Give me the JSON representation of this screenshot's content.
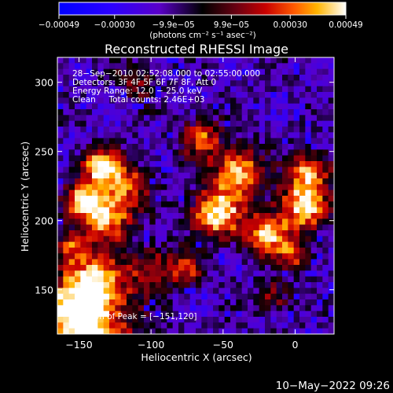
{
  "chart_data": {
    "type": "heatmap",
    "title": "Reconstructed RHESSI Image",
    "xlabel": "Heliocentric X (arcsec)",
    "ylabel": "Heliocentric Y (arcsec)",
    "xlim": [
      -165,
      27
    ],
    "ylim": [
      118,
      318
    ],
    "x_ticks": [
      {
        "value": -150,
        "label": "−150"
      },
      {
        "value": -100,
        "label": "−100"
      },
      {
        "value": -50,
        "label": "−50"
      },
      {
        "value": 0,
        "label": "0"
      }
    ],
    "y_ticks": [
      {
        "value": 150,
        "label": "150"
      },
      {
        "value": 200,
        "label": "200"
      },
      {
        "value": 250,
        "label": "250"
      },
      {
        "value": 300,
        "label": "300"
      }
    ],
    "colorbar": {
      "min": -0.00049,
      "max": 0.00049,
      "label": "(photons cm⁻² s⁻¹ asec⁻²)",
      "ticks": [
        {
          "value": -0.00049,
          "label": "−0.00049"
        },
        {
          "value": -0.0003,
          "label": "−0.00030"
        },
        {
          "value": -9.9e-05,
          "label": "−9.9e−05"
        },
        {
          "value": 9.9e-05,
          "label": "9.9e−05"
        },
        {
          "value": 0.0003,
          "label": "0.00030"
        },
        {
          "value": 0.00049,
          "label": "0.00049"
        }
      ]
    },
    "annotations": {
      "time": "28−Sep−2010 02:52:08.000 to 02:55:00.000",
      "detectors": "Detectors: 3F 4F 5F 6F 7F 8F, Att 0",
      "energy": "Energy Range: 12.0 − 25.0 keV",
      "clean": "Clean     Total counts: 2.46E+03",
      "peak": "Position of Peak = [−151,120]"
    },
    "peak_position": [
      -151,
      120
    ],
    "blobs": [
      {
        "x": -148,
        "y": 125,
        "w": 22,
        "intensity": 1.0
      },
      {
        "x": -140,
        "y": 155,
        "w": 14,
        "intensity": 0.7
      },
      {
        "x": -145,
        "y": 215,
        "w": 10,
        "intensity": 0.85
      },
      {
        "x": -135,
        "y": 240,
        "w": 9,
        "intensity": 0.85
      },
      {
        "x": -130,
        "y": 200,
        "w": 11,
        "intensity": 0.75
      },
      {
        "x": -118,
        "y": 225,
        "w": 11,
        "intensity": 0.65
      },
      {
        "x": -155,
        "y": 180,
        "w": 8,
        "intensity": 0.55
      },
      {
        "x": -100,
        "y": 165,
        "w": 12,
        "intensity": 0.45
      },
      {
        "x": -55,
        "y": 205,
        "w": 12,
        "intensity": 0.9
      },
      {
        "x": -40,
        "y": 235,
        "w": 12,
        "intensity": 0.8
      },
      {
        "x": -65,
        "y": 260,
        "w": 10,
        "intensity": 0.6
      },
      {
        "x": -20,
        "y": 190,
        "w": 11,
        "intensity": 0.8
      },
      {
        "x": 5,
        "y": 210,
        "w": 12,
        "intensity": 0.8
      },
      {
        "x": 10,
        "y": 235,
        "w": 10,
        "intensity": 0.75
      },
      {
        "x": 0,
        "y": 175,
        "w": 8,
        "intensity": 0.55
      },
      {
        "x": -15,
        "y": 145,
        "w": 8,
        "intensity": 0.4
      },
      {
        "x": -75,
        "y": 165,
        "w": 8,
        "intensity": 0.5
      },
      {
        "x": -110,
        "y": 300,
        "w": 10,
        "intensity": 0.3
      }
    ]
  },
  "footer": {
    "date": "10−May−2022 09:26"
  }
}
